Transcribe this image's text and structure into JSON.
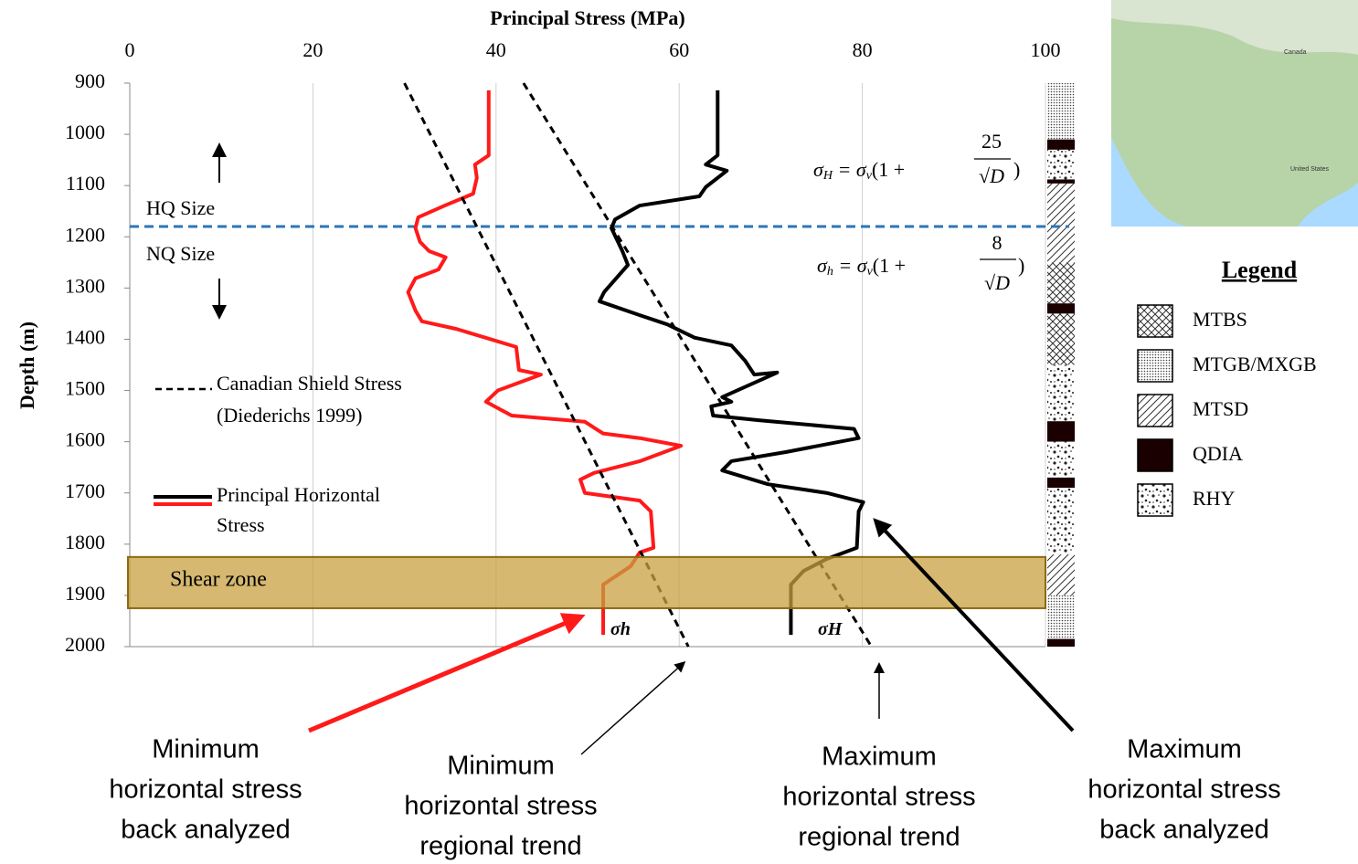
{
  "chart_data": {
    "type": "line",
    "title": "Principal Stress (MPa)",
    "y_label": "Depth (m)",
    "xlim": [
      0,
      100
    ],
    "xticks": [
      0,
      20,
      40,
      60,
      80,
      100
    ],
    "ylim": [
      900,
      2000
    ],
    "yticks": [
      900,
      1000,
      1100,
      1200,
      1300,
      1400,
      1500,
      1600,
      1700,
      1800,
      1900,
      2000
    ],
    "y_inverted": true,
    "grid": "vertical",
    "series": [
      {
        "name": "σh",
        "color": "#ff1a1a",
        "style": "solid",
        "x": [
          39.2,
          39.2,
          37.7,
          37.9,
          37.5,
          34.4,
          31.5,
          31.2,
          31.7,
          32.7,
          34.5,
          33.7,
          31.2,
          30.4,
          31.2,
          31.9,
          35.7,
          42.2,
          42.5,
          44.9,
          40.2,
          38.9,
          41.7,
          49.7,
          51.7,
          55.7,
          60.2,
          55.7,
          50.7,
          49.2,
          49.7,
          55.7,
          56.9,
          57.2,
          55.7,
          54.7,
          53.2,
          51.7,
          51.7
        ],
        "y": [
          914,
          1041,
          1059,
          1085,
          1116,
          1139,
          1162,
          1183,
          1210,
          1228,
          1240,
          1264,
          1281,
          1308,
          1344,
          1365,
          1380,
          1415,
          1460,
          1469,
          1500,
          1522,
          1549,
          1561,
          1584,
          1593,
          1608,
          1638,
          1661,
          1674,
          1700,
          1715,
          1736,
          1807,
          1816,
          1843,
          1861,
          1879,
          1977
        ]
      },
      {
        "name": "σH",
        "color": "#000000",
        "style": "solid",
        "x": [
          64.2,
          64.2,
          62.9,
          65.2,
          62.9,
          62.2,
          55.7,
          53.0,
          52.6,
          53.8,
          54.4,
          51.8,
          51.3,
          55.7,
          58.7,
          61.7,
          65.7,
          67.2,
          68.2,
          70.7,
          64.7,
          65.7,
          63.5,
          63.7,
          68.7,
          79.1,
          79.6,
          71.7,
          65.7,
          64.7,
          69.7,
          76.1,
          80.1,
          79.6,
          79.4,
          76.1,
          73.6,
          72.2,
          72.2
        ],
        "y": [
          914,
          1041,
          1059,
          1071,
          1103,
          1121,
          1139,
          1166,
          1183,
          1228,
          1255,
          1308,
          1326,
          1353,
          1371,
          1397,
          1412,
          1442,
          1469,
          1465,
          1513,
          1522,
          1531,
          1549,
          1558,
          1575,
          1593,
          1620,
          1638,
          1656,
          1683,
          1700,
          1718,
          1736,
          1807,
          1829,
          1852,
          1879,
          1977
        ]
      },
      {
        "color": "#000000",
        "style": "dashed",
        "x": [
          30,
          61
        ],
        "y": [
          900,
          2000
        ]
      },
      {
        "color": "#000000",
        "style": "dashed",
        "x": [
          43,
          81
        ],
        "y": [
          900,
          2000
        ]
      }
    ],
    "boundary": {
      "depth": 1180,
      "color": "#2e75b6",
      "above": "HQ Size",
      "below": "NQ Size"
    },
    "shear_zone": {
      "label": "Shear zone",
      "top": 1825,
      "bottom": 1925,
      "color": "#c8a040"
    },
    "equations": [
      {
        "pre": "σ",
        "sub": "H",
        "mid": " = σ",
        "sub2": "v",
        "open": "(1 + ",
        "num": "25",
        "den": "√D",
        "close": ")"
      },
      {
        "pre": "σ",
        "sub": "h",
        "mid": " = σ",
        "sub2": "v",
        "open": "(1 + ",
        "num": "8",
        "den": "√D",
        "close": ")"
      }
    ],
    "annotations": {
      "trend": [
        "Canadian Shield Stress",
        "(Diederichs 1999)"
      ],
      "measured": [
        "Principal Horizontal",
        "Stress"
      ]
    },
    "callouts": [
      [
        "Minimum",
        "horizontal stress",
        "back analyzed"
      ],
      [
        "Minimum",
        "horizontal stress",
        "regional trend"
      ],
      [
        "Maximum",
        "horizontal stress",
        "regional trend"
      ],
      [
        "Maximum",
        "horizontal stress",
        "back analyzed"
      ]
    ],
    "legend": {
      "title": "Legend",
      "items": [
        "MTBS",
        "MTGB/MXGB",
        "MTSD",
        "QDIA",
        "RHY"
      ]
    },
    "lithology": [
      {
        "top": 900,
        "bottom": 1010,
        "unit": 1
      },
      {
        "top": 1010,
        "bottom": 1030,
        "unit": 3
      },
      {
        "top": 1030,
        "bottom": 1088,
        "unit": 4
      },
      {
        "top": 1088,
        "bottom": 1096,
        "unit": 3
      },
      {
        "top": 1096,
        "bottom": 1250,
        "unit": 2
      },
      {
        "top": 1250,
        "bottom": 1330,
        "unit": 0
      },
      {
        "top": 1330,
        "bottom": 1350,
        "unit": 3
      },
      {
        "top": 1350,
        "bottom": 1450,
        "unit": 0
      },
      {
        "top": 1450,
        "bottom": 1560,
        "unit": 4
      },
      {
        "top": 1560,
        "bottom": 1600,
        "unit": 3
      },
      {
        "top": 1600,
        "bottom": 1670,
        "unit": 4
      },
      {
        "top": 1670,
        "bottom": 1690,
        "unit": 3
      },
      {
        "top": 1690,
        "bottom": 1820,
        "unit": 4
      },
      {
        "top": 1820,
        "bottom": 1900,
        "unit": 2
      },
      {
        "top": 1900,
        "bottom": 1985,
        "unit": 1
      },
      {
        "top": 1985,
        "bottom": 2000,
        "unit": 3
      }
    ],
    "map": {
      "labels": [
        "Canada",
        "United States"
      ]
    }
  }
}
